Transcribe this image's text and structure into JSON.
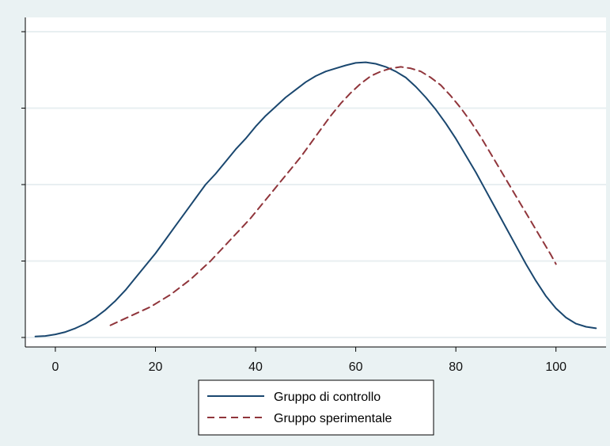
{
  "chart_data": {
    "type": "line",
    "title": "",
    "xlabel": "",
    "ylabel": "",
    "xlim": [
      -6,
      110
    ],
    "ylim": [
      0,
      1
    ],
    "x_ticks": [
      0,
      20,
      40,
      60,
      80,
      100
    ],
    "x_tick_labels": [
      "0",
      "20",
      "40",
      "60",
      "80",
      "100"
    ],
    "y_tick_labels_shown": false,
    "grid": "horizontal",
    "legend_position": "bottom-center",
    "colors": {
      "outer_background": "#eaf2f3",
      "plot_background": "#ffffff",
      "grid": "#e8eff1",
      "axis": "#000000"
    },
    "series": [
      {
        "name": "Gruppo di controllo",
        "color": "#1a476f",
        "style": "solid",
        "x": [
          -4,
          -2,
          0,
          2,
          4,
          6,
          8,
          10,
          12,
          14,
          16,
          18,
          20,
          22,
          24,
          26,
          28,
          30,
          32,
          34,
          36,
          38,
          40,
          42,
          44,
          46,
          48,
          50,
          52,
          54,
          56,
          58,
          60,
          62,
          64,
          66,
          68,
          70,
          72,
          74,
          76,
          78,
          80,
          82,
          84,
          86,
          88,
          90,
          92,
          94,
          96,
          98,
          100,
          102,
          104,
          106,
          108
        ],
        "y": [
          0.003,
          0.005,
          0.01,
          0.018,
          0.03,
          0.045,
          0.065,
          0.09,
          0.12,
          0.155,
          0.195,
          0.235,
          0.275,
          0.32,
          0.365,
          0.41,
          0.455,
          0.5,
          0.535,
          0.575,
          0.615,
          0.65,
          0.69,
          0.725,
          0.755,
          0.785,
          0.81,
          0.835,
          0.855,
          0.87,
          0.88,
          0.89,
          0.898,
          0.9,
          0.895,
          0.885,
          0.87,
          0.85,
          0.82,
          0.785,
          0.745,
          0.7,
          0.65,
          0.595,
          0.54,
          0.48,
          0.42,
          0.36,
          0.3,
          0.24,
          0.185,
          0.135,
          0.095,
          0.065,
          0.045,
          0.035,
          0.03
        ]
      },
      {
        "name": "Gruppo sperimentale",
        "color": "#90353b",
        "style": "dashed",
        "x": [
          11,
          13,
          15,
          17,
          19,
          21,
          23,
          25,
          27,
          29,
          31,
          33,
          35,
          37,
          39,
          41,
          43,
          45,
          47,
          49,
          51,
          53,
          55,
          57,
          59,
          61,
          63,
          65,
          67,
          69,
          71,
          73,
          75,
          77,
          79,
          81,
          83,
          85,
          87,
          89,
          91,
          93,
          95,
          97,
          99,
          100
        ],
        "y": [
          0.04,
          0.055,
          0.07,
          0.085,
          0.1,
          0.12,
          0.14,
          0.165,
          0.19,
          0.22,
          0.25,
          0.285,
          0.32,
          0.355,
          0.39,
          0.43,
          0.47,
          0.51,
          0.55,
          0.59,
          0.635,
          0.68,
          0.725,
          0.765,
          0.8,
          0.83,
          0.855,
          0.87,
          0.88,
          0.885,
          0.88,
          0.87,
          0.85,
          0.825,
          0.79,
          0.75,
          0.705,
          0.655,
          0.6,
          0.545,
          0.49,
          0.435,
          0.38,
          0.325,
          0.27,
          0.24
        ]
      }
    ]
  }
}
